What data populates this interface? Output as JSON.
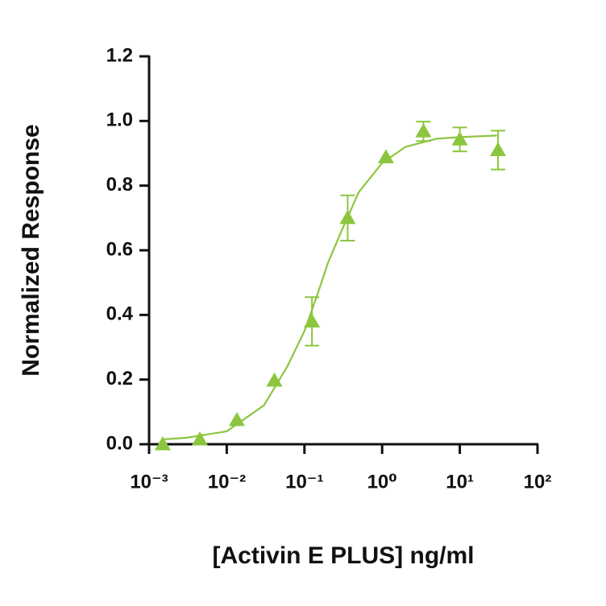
{
  "chart_data": {
    "type": "scatter",
    "x_label": "[Activin E PLUS] ng/ml",
    "y_label": "Normalized Response",
    "x_log": true,
    "color": "#8cc63e",
    "x": [
      0.0015,
      0.0045,
      0.0135,
      0.041,
      0.125,
      0.36,
      1.12,
      3.4,
      10,
      31
    ],
    "values": [
      0.0,
      0.015,
      0.075,
      0.197,
      0.38,
      0.7,
      0.888,
      0.968,
      0.943,
      0.91
    ],
    "errors": [
      null,
      null,
      null,
      null,
      0.075,
      0.07,
      null,
      0.03,
      0.037,
      0.06
    ],
    "curve": {
      "x": [
        0.0015,
        0.003,
        0.01,
        0.03,
        0.06,
        0.1,
        0.15,
        0.2,
        0.3,
        0.5,
        1,
        2,
        5,
        10,
        30
      ],
      "y": [
        0.015,
        0.02,
        0.04,
        0.12,
        0.24,
        0.35,
        0.47,
        0.56,
        0.66,
        0.78,
        0.87,
        0.92,
        0.945,
        0.95,
        0.955
      ]
    },
    "xlim": [
      0.001,
      100
    ],
    "ylim": [
      0,
      1.2
    ],
    "xticks": [
      {
        "value": 0.001,
        "label": "10⁻³"
      },
      {
        "value": 0.01,
        "label": "10⁻²"
      },
      {
        "value": 0.1,
        "label": "10⁻¹"
      },
      {
        "value": 1,
        "label": "10⁰"
      },
      {
        "value": 10,
        "label": "10¹"
      },
      {
        "value": 100,
        "label": "10²"
      }
    ],
    "yticks": [
      {
        "value": 0,
        "label": "0.0"
      },
      0.2,
      0.4,
      0.6,
      0.8,
      {
        "value": 1,
        "label": "1.0"
      },
      1.2
    ]
  }
}
